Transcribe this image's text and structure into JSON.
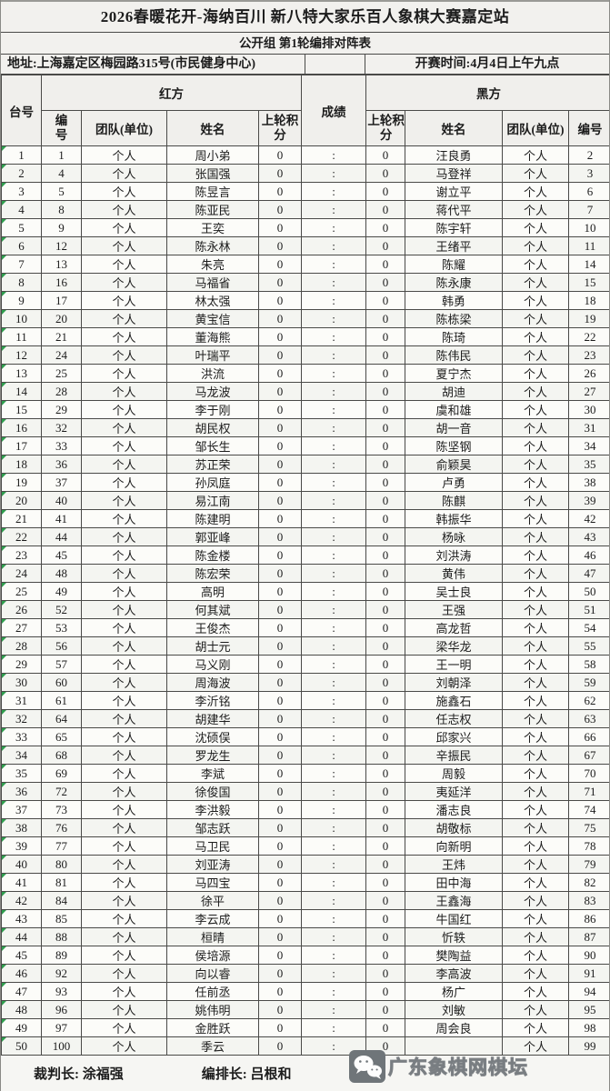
{
  "page": {
    "title": "2026春暖花开-海纳百川 新八特大家乐百人象棋大赛嘉定站",
    "subtitle": "公开组 第1轮编排对阵表"
  },
  "info": {
    "address": "地址:上海嘉定区梅园路315号(市民健身中心)",
    "start_time": "开赛时间:4月4日上午九点"
  },
  "table": {
    "headers": {
      "table_no": "台号",
      "red_group": "红方",
      "black_group": "黑方",
      "score": "成绩",
      "player_no": "编号",
      "team": "团队(单位)",
      "name": "姓名",
      "prev_points": "上轮积分"
    },
    "score_separator": ":",
    "rows": [
      [
        "1",
        "1",
        "个人",
        "周小弟",
        "0",
        ":",
        "0",
        "汪良勇",
        "个人",
        "2"
      ],
      [
        "2",
        "4",
        "个人",
        "张国强",
        "0",
        ":",
        "0",
        "马登祥",
        "个人",
        "3"
      ],
      [
        "3",
        "5",
        "个人",
        "陈昱言",
        "0",
        ":",
        "0",
        "谢立平",
        "个人",
        "6"
      ],
      [
        "4",
        "8",
        "个人",
        "陈亚民",
        "0",
        ":",
        "0",
        "蒋代平",
        "个人",
        "7"
      ],
      [
        "5",
        "9",
        "个人",
        "王奕",
        "0",
        ":",
        "0",
        "陈宇轩",
        "个人",
        "10"
      ],
      [
        "6",
        "12",
        "个人",
        "陈永林",
        "0",
        ":",
        "0",
        "王绪平",
        "个人",
        "11"
      ],
      [
        "7",
        "13",
        "个人",
        "朱亮",
        "0",
        ":",
        "0",
        "陈耀",
        "个人",
        "14"
      ],
      [
        "8",
        "16",
        "个人",
        "马福省",
        "0",
        ":",
        "0",
        "陈永康",
        "个人",
        "15"
      ],
      [
        "9",
        "17",
        "个人",
        "林太强",
        "0",
        ":",
        "0",
        "韩勇",
        "个人",
        "18"
      ],
      [
        "10",
        "20",
        "个人",
        "黄宝信",
        "0",
        ":",
        "0",
        "陈栋梁",
        "个人",
        "19"
      ],
      [
        "11",
        "21",
        "个人",
        "董海熊",
        "0",
        ":",
        "0",
        "陈琦",
        "个人",
        "22"
      ],
      [
        "12",
        "24",
        "个人",
        "叶瑞平",
        "0",
        ":",
        "0",
        "陈伟民",
        "个人",
        "23"
      ],
      [
        "13",
        "25",
        "个人",
        "洪流",
        "0",
        ":",
        "0",
        "夏宁杰",
        "个人",
        "26"
      ],
      [
        "14",
        "28",
        "个人",
        "马龙波",
        "0",
        ":",
        "0",
        "胡迪",
        "个人",
        "27"
      ],
      [
        "15",
        "29",
        "个人",
        "李于刚",
        "0",
        ":",
        "0",
        "虞和雄",
        "个人",
        "30"
      ],
      [
        "16",
        "32",
        "个人",
        "胡民权",
        "0",
        ":",
        "0",
        "胡一音",
        "个人",
        "31"
      ],
      [
        "17",
        "33",
        "个人",
        "邹长生",
        "0",
        ":",
        "0",
        "陈坚钢",
        "个人",
        "34"
      ],
      [
        "18",
        "36",
        "个人",
        "苏正荣",
        "0",
        ":",
        "0",
        "俞颖昊",
        "个人",
        "35"
      ],
      [
        "19",
        "37",
        "个人",
        "孙凤庭",
        "0",
        ":",
        "0",
        "卢勇",
        "个人",
        "38"
      ],
      [
        "20",
        "40",
        "个人",
        "易江南",
        "0",
        ":",
        "0",
        "陈麒",
        "个人",
        "39"
      ],
      [
        "21",
        "41",
        "个人",
        "陈建明",
        "0",
        ":",
        "0",
        "韩振华",
        "个人",
        "42"
      ],
      [
        "22",
        "44",
        "个人",
        "郭亚峰",
        "0",
        ":",
        "0",
        "杨咏",
        "个人",
        "43"
      ],
      [
        "23",
        "45",
        "个人",
        "陈金楼",
        "0",
        ":",
        "0",
        "刘洪涛",
        "个人",
        "46"
      ],
      [
        "24",
        "48",
        "个人",
        "陈宏荣",
        "0",
        ":",
        "0",
        "黄伟",
        "个人",
        "47"
      ],
      [
        "25",
        "49",
        "个人",
        "高明",
        "0",
        ":",
        "0",
        "吴士良",
        "个人",
        "50"
      ],
      [
        "26",
        "52",
        "个人",
        "何其斌",
        "0",
        ":",
        "0",
        "王强",
        "个人",
        "51"
      ],
      [
        "27",
        "53",
        "个人",
        "王俊杰",
        "0",
        ":",
        "0",
        "高龙哲",
        "个人",
        "54"
      ],
      [
        "28",
        "56",
        "个人",
        "胡士元",
        "0",
        ":",
        "0",
        "梁华龙",
        "个人",
        "55"
      ],
      [
        "29",
        "57",
        "个人",
        "马义刚",
        "0",
        ":",
        "0",
        "王一明",
        "个人",
        "58"
      ],
      [
        "30",
        "60",
        "个人",
        "周海波",
        "0",
        ":",
        "0",
        "刘朝泽",
        "个人",
        "59"
      ],
      [
        "31",
        "61",
        "个人",
        "李沂铭",
        "0",
        ":",
        "0",
        "施鑫石",
        "个人",
        "62"
      ],
      [
        "32",
        "64",
        "个人",
        "胡建华",
        "0",
        ":",
        "0",
        "任志权",
        "个人",
        "63"
      ],
      [
        "33",
        "65",
        "个人",
        "沈硕俣",
        "0",
        ":",
        "0",
        "邱家兴",
        "个人",
        "66"
      ],
      [
        "34",
        "68",
        "个人",
        "罗龙生",
        "0",
        ":",
        "0",
        "辛振民",
        "个人",
        "67"
      ],
      [
        "35",
        "69",
        "个人",
        "李斌",
        "0",
        ":",
        "0",
        "周毅",
        "个人",
        "70"
      ],
      [
        "36",
        "72",
        "个人",
        "徐俊国",
        "0",
        ":",
        "0",
        "夷延洋",
        "个人",
        "71"
      ],
      [
        "37",
        "73",
        "个人",
        "李洪毅",
        "0",
        ":",
        "0",
        "潘志良",
        "个人",
        "74"
      ],
      [
        "38",
        "76",
        "个人",
        "邹志跃",
        "0",
        ":",
        "0",
        "胡敬标",
        "个人",
        "75"
      ],
      [
        "39",
        "77",
        "个人",
        "马卫民",
        "0",
        ":",
        "0",
        "向新明",
        "个人",
        "78"
      ],
      [
        "40",
        "80",
        "个人",
        "刘亚涛",
        "0",
        ":",
        "0",
        "王炜",
        "个人",
        "79"
      ],
      [
        "41",
        "81",
        "个人",
        "马四宝",
        "0",
        ":",
        "0",
        "田中海",
        "个人",
        "82"
      ],
      [
        "42",
        "84",
        "个人",
        "徐平",
        "0",
        ":",
        "0",
        "王鑫海",
        "个人",
        "83"
      ],
      [
        "43",
        "85",
        "个人",
        "李云成",
        "0",
        ":",
        "0",
        "牛国红",
        "个人",
        "86"
      ],
      [
        "44",
        "88",
        "个人",
        "桓晴",
        "0",
        ":",
        "0",
        "忻轶",
        "个人",
        "87"
      ],
      [
        "45",
        "89",
        "个人",
        "侯培源",
        "0",
        ":",
        "0",
        "樊陶益",
        "个人",
        "90"
      ],
      [
        "46",
        "92",
        "个人",
        "向以睿",
        "0",
        ":",
        "0",
        "李高波",
        "个人",
        "91"
      ],
      [
        "47",
        "93",
        "个人",
        "任前丞",
        "0",
        ":",
        "0",
        "杨广",
        "个人",
        "94"
      ],
      [
        "48",
        "96",
        "个人",
        "姚伟明",
        "0",
        ":",
        "0",
        "刘敏",
        "个人",
        "95"
      ],
      [
        "49",
        "97",
        "个人",
        "金胜跃",
        "0",
        ":",
        "0",
        "周会良",
        "个人",
        "98"
      ],
      [
        "50",
        "100",
        "个人",
        "季云",
        "0",
        ":",
        "0",
        "",
        "个人",
        "99"
      ]
    ]
  },
  "footer": {
    "chief_referee": "裁判长: 涂福强",
    "chief_arranger": "编排长: 吕根和"
  },
  "watermark": {
    "icon": "wechat-icon",
    "text": "广东象棋网棋坛"
  },
  "colors": {
    "cell_flag_green": "#2f9e4e",
    "border": "#4a4a48",
    "header_bg": "#f0efec",
    "watermark_icon_bg": "#6f7579"
  }
}
